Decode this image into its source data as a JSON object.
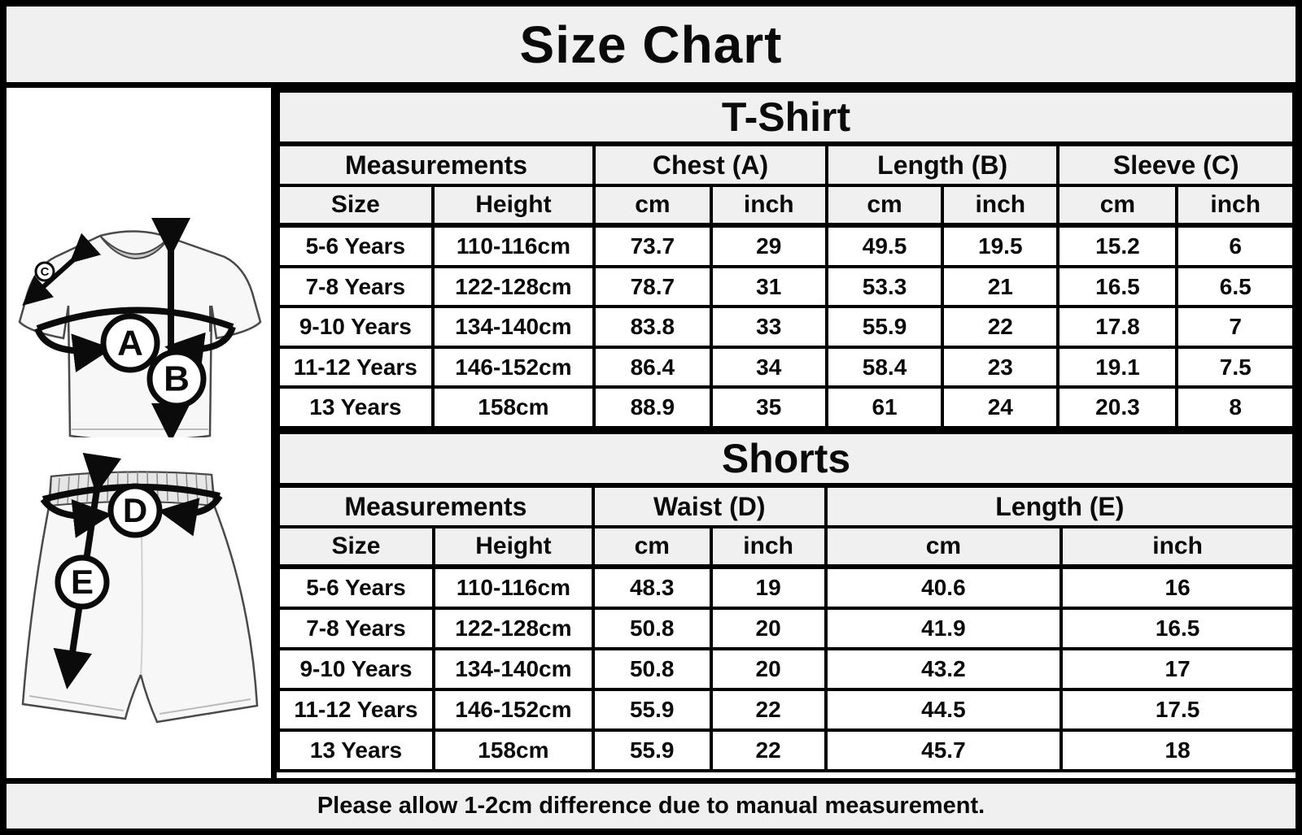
{
  "title": "Size Chart",
  "note": "Please allow 1-2cm difference due to manual measurement.",
  "colors": {
    "border": "#000000",
    "header_bg": "#f0f0f0",
    "cell_bg": "#ffffff",
    "garment_fill": "#f7f7f7",
    "garment_line": "#4a4a4a",
    "collar_fill": "#c9c9c9",
    "waistband_fill": "#e6e6e6",
    "arrow": "#0b0b0b"
  },
  "diagram": {
    "chest_label": "A",
    "length_label": "B",
    "sleeve_label": "C",
    "waist_label": "D",
    "shorts_length_label": "E"
  },
  "tshirt_table": {
    "title": "T-Shirt",
    "group_headers": [
      "Measurements",
      "Chest (A)",
      "Length (B)",
      "Sleeve (C)"
    ],
    "sub_headers": [
      "Size",
      "Height",
      "cm",
      "inch",
      "cm",
      "inch",
      "cm",
      "inch"
    ],
    "rows": [
      [
        "5-6 Years",
        "110-116cm",
        "73.7",
        "29",
        "49.5",
        "19.5",
        "15.2",
        "6"
      ],
      [
        "7-8 Years",
        "122-128cm",
        "78.7",
        "31",
        "53.3",
        "21",
        "16.5",
        "6.5"
      ],
      [
        "9-10 Years",
        "134-140cm",
        "83.8",
        "33",
        "55.9",
        "22",
        "17.8",
        "7"
      ],
      [
        "11-12 Years",
        "146-152cm",
        "86.4",
        "34",
        "58.4",
        "23",
        "19.1",
        "7.5"
      ],
      [
        "13 Years",
        "158cm",
        "88.9",
        "35",
        "61",
        "24",
        "20.3",
        "8"
      ]
    ]
  },
  "shorts_table": {
    "title": "Shorts",
    "group_headers": [
      "Measurements",
      "Waist (D)",
      "Length (E)"
    ],
    "sub_headers": [
      "Size",
      "Height",
      "cm",
      "inch",
      "cm",
      "inch"
    ],
    "rows": [
      [
        "5-6 Years",
        "110-116cm",
        "48.3",
        "19",
        "40.6",
        "16"
      ],
      [
        "7-8 Years",
        "122-128cm",
        "50.8",
        "20",
        "41.9",
        "16.5"
      ],
      [
        "9-10 Years",
        "134-140cm",
        "50.8",
        "20",
        "43.2",
        "17"
      ],
      [
        "11-12 Years",
        "146-152cm",
        "55.9",
        "22",
        "44.5",
        "17.5"
      ],
      [
        "13 Years",
        "158cm",
        "55.9",
        "22",
        "45.7",
        "18"
      ]
    ]
  },
  "chart_data": [
    {
      "type": "table",
      "title": "T-Shirt",
      "columns": [
        "Size",
        "Height",
        "Chest (A) cm",
        "Chest (A) inch",
        "Length (B) cm",
        "Length (B) inch",
        "Sleeve (C) cm",
        "Sleeve (C) inch"
      ],
      "rows": [
        [
          "5-6 Years",
          "110-116cm",
          73.7,
          29,
          49.5,
          19.5,
          15.2,
          6
        ],
        [
          "7-8 Years",
          "122-128cm",
          78.7,
          31,
          53.3,
          21,
          16.5,
          6.5
        ],
        [
          "9-10 Years",
          "134-140cm",
          83.8,
          33,
          55.9,
          22,
          17.8,
          7
        ],
        [
          "11-12 Years",
          "146-152cm",
          86.4,
          34,
          58.4,
          23,
          19.1,
          7.5
        ],
        [
          "13 Years",
          "158cm",
          88.9,
          35,
          61,
          24,
          20.3,
          8
        ]
      ]
    },
    {
      "type": "table",
      "title": "Shorts",
      "columns": [
        "Size",
        "Height",
        "Waist (D) cm",
        "Waist (D) inch",
        "Length (E) cm",
        "Length (E) inch"
      ],
      "rows": [
        [
          "5-6 Years",
          "110-116cm",
          48.3,
          19,
          40.6,
          16
        ],
        [
          "7-8 Years",
          "122-128cm",
          50.8,
          20,
          41.9,
          16.5
        ],
        [
          "9-10 Years",
          "134-140cm",
          50.8,
          20,
          43.2,
          17
        ],
        [
          "11-12 Years",
          "146-152cm",
          55.9,
          22,
          44.5,
          17.5
        ],
        [
          "13 Years",
          "158cm",
          55.9,
          22,
          45.7,
          18
        ]
      ]
    }
  ]
}
